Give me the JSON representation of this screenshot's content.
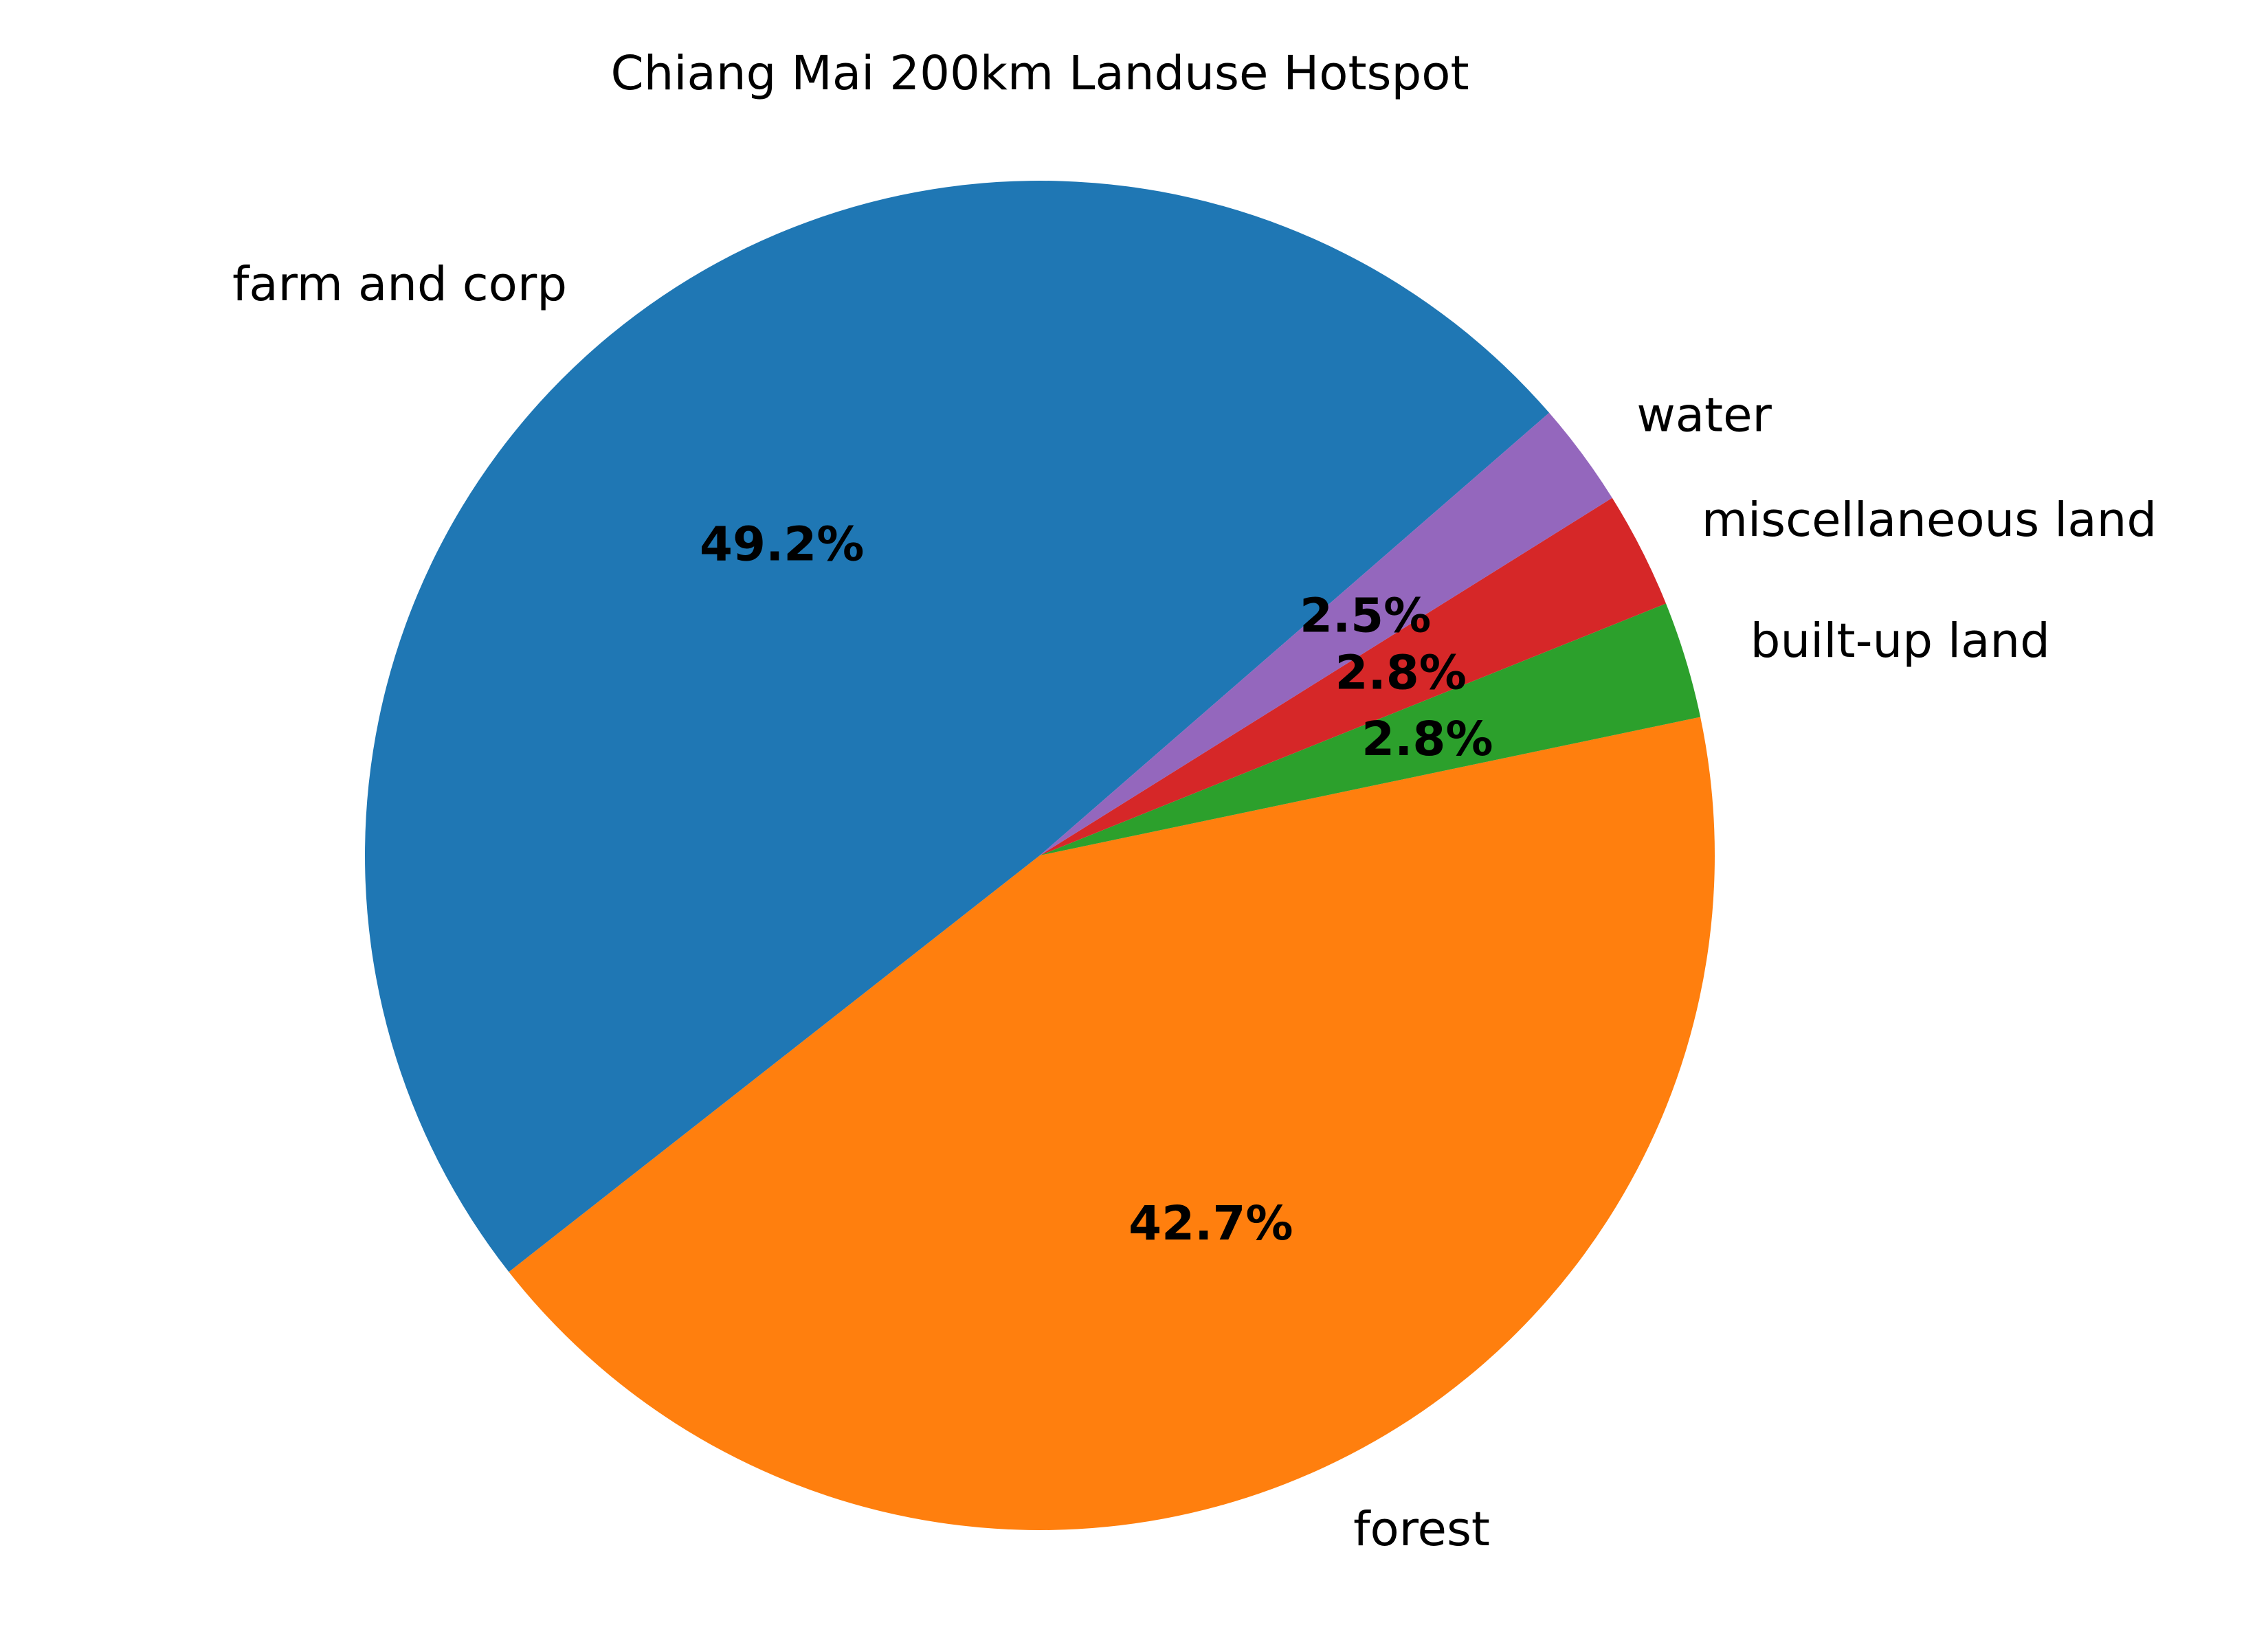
{
  "chart_data": {
    "type": "pie",
    "title": "Chiang Mai 200km Landuse Hotspot",
    "start_angle_deg": 41,
    "direction": "counterclockwise",
    "slices": [
      {
        "label": "farm and corp",
        "value": 49.2,
        "pct_label": "49.2%",
        "color": "#1f77b4"
      },
      {
        "label": "forest",
        "value": 42.7,
        "pct_label": "42.7%",
        "color": "#ff7f0e"
      },
      {
        "label": "built-up land",
        "value": 2.8,
        "pct_label": "2.8%",
        "color": "#2ca02c"
      },
      {
        "label": "miscellaneous land",
        "value": 2.8,
        "pct_label": "2.8%",
        "color": "#d62728"
      },
      {
        "label": "water",
        "value": 2.5,
        "pct_label": "2.5%",
        "color": "#9467bd"
      }
    ]
  }
}
